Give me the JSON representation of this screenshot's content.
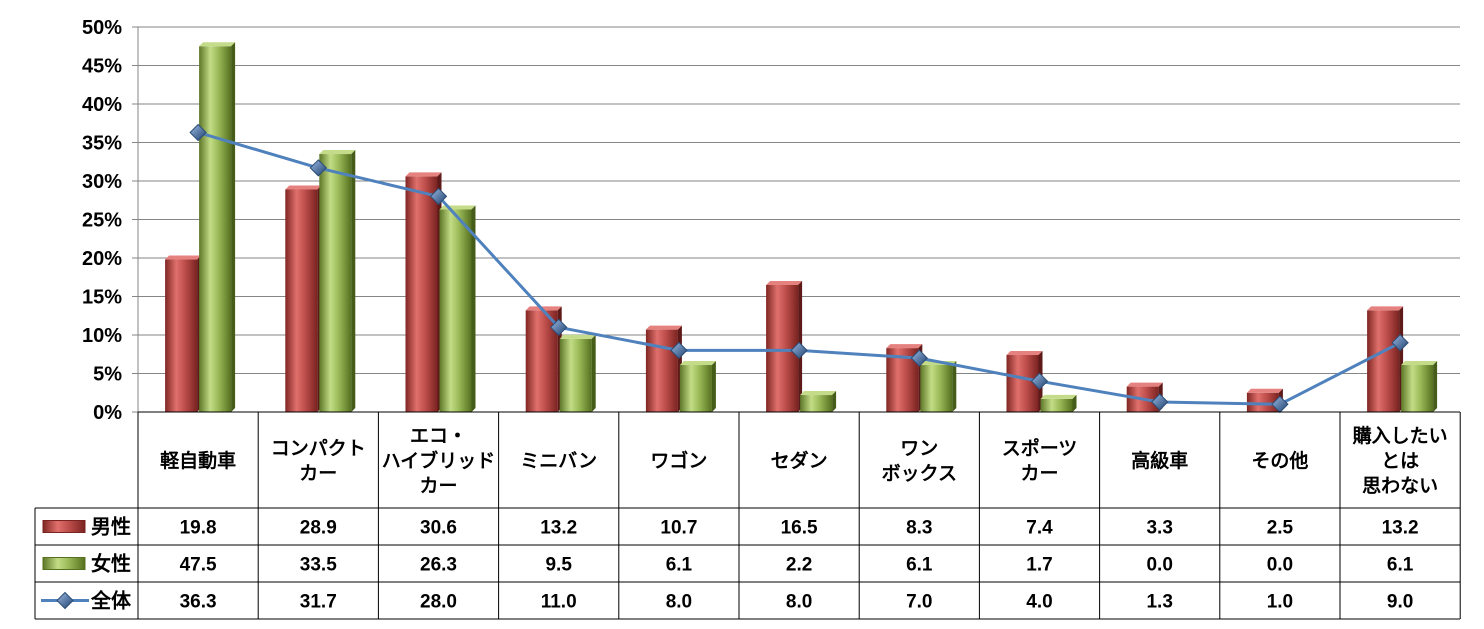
{
  "chart_data": {
    "type": "bar",
    "y_axis": {
      "min": 0,
      "max": 50,
      "step": 5,
      "unit": "%",
      "ticks": [
        "0%",
        "5%",
        "10%",
        "15%",
        "20%",
        "25%",
        "30%",
        "35%",
        "40%",
        "45%",
        "50%"
      ]
    },
    "grid": true,
    "legend_position": "data-table",
    "categories": [
      [
        "軽自動車"
      ],
      [
        "コンパクト",
        "カー"
      ],
      [
        "エコ・",
        "ハイブリッド",
        "カー"
      ],
      [
        "ミニバン"
      ],
      [
        "ワゴン"
      ],
      [
        "セダン"
      ],
      [
        "ワン",
        "ボックス"
      ],
      [
        "スポーツ",
        "カー"
      ],
      [
        "高級車"
      ],
      [
        "その他"
      ],
      [
        "購入したい",
        "とは",
        "思わない"
      ]
    ],
    "series": [
      {
        "name": "男性",
        "type": "bar",
        "color": "#c0504d",
        "values": [
          19.8,
          28.9,
          30.6,
          13.2,
          10.7,
          16.5,
          8.3,
          7.4,
          3.3,
          2.5,
          13.2
        ],
        "labels": [
          "19.8",
          "28.9",
          "30.6",
          "13.2",
          "10.7",
          "16.5",
          "8.3",
          "7.4",
          "3.3",
          "2.5",
          "13.2"
        ]
      },
      {
        "name": "女性",
        "type": "bar",
        "color": "#9bbb59",
        "values": [
          47.5,
          33.5,
          26.3,
          9.5,
          6.1,
          2.2,
          6.1,
          1.7,
          0.0,
          0.0,
          6.1
        ],
        "labels": [
          "47.5",
          "33.5",
          "26.3",
          "9.5",
          "6.1",
          "2.2",
          "6.1",
          "1.7",
          "0.0",
          "0.0",
          "6.1"
        ]
      },
      {
        "name": "全体",
        "type": "line",
        "marker": "diamond",
        "color": "#4f81bd",
        "values": [
          36.3,
          31.7,
          28.0,
          11.0,
          8.0,
          8.0,
          7.0,
          4.0,
          1.3,
          1.0,
          9.0
        ],
        "labels": [
          "36.3",
          "31.7",
          "28.0",
          "11.0",
          "8.0",
          "8.0",
          "7.0",
          "4.0",
          "1.3",
          "1.0",
          "9.0"
        ]
      }
    ]
  }
}
